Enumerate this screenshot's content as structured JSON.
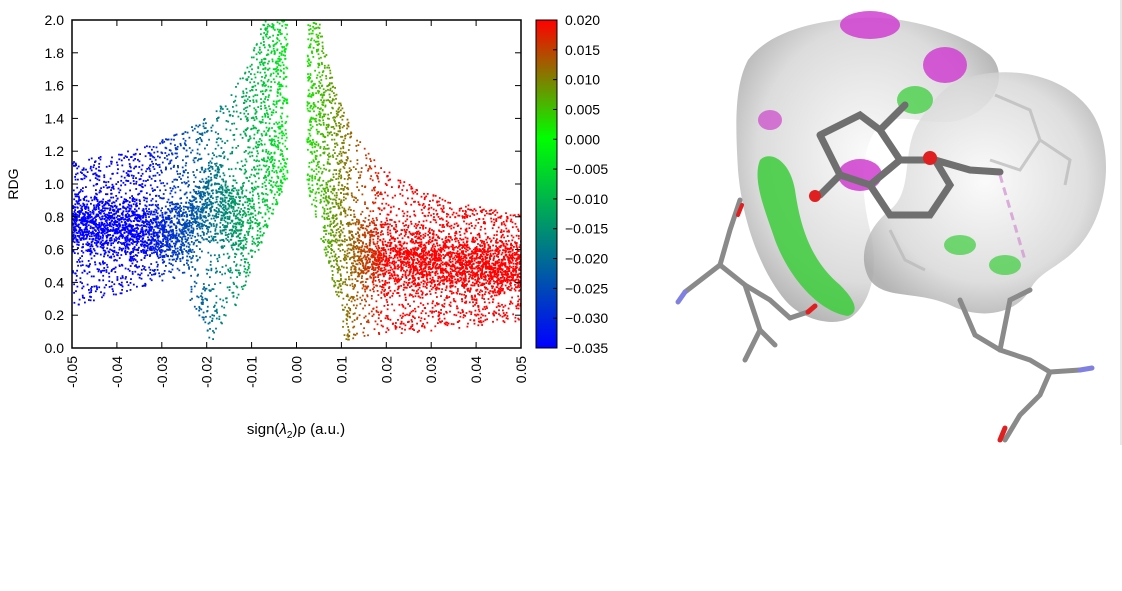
{
  "chart_data": {
    "type": "scatter",
    "title": "",
    "xlabel_parts": {
      "prefix": "sign(",
      "lambda": "λ",
      "sub": "2",
      "suffix": ")ρ (a.u.)"
    },
    "ylabel": "RDG",
    "xlim": [
      -0.05,
      0.05
    ],
    "ylim": [
      0.0,
      2.0
    ],
    "x_ticks": [
      "-0.05",
      "-0.04",
      "-0.03",
      "-0.02",
      "-0.01",
      "0.00",
      "0.01",
      "0.02",
      "0.03",
      "0.04",
      "0.05"
    ],
    "y_ticks": [
      "0.0",
      "0.2",
      "0.4",
      "0.6",
      "0.8",
      "1.0",
      "1.2",
      "1.4",
      "1.6",
      "1.8",
      "2.0"
    ],
    "colorbar": {
      "range": [
        -0.035,
        0.02
      ],
      "ticks": [
        "0.020",
        "0.015",
        "0.010",
        "0.005",
        "0.000",
        "−0.005",
        "−0.010",
        "−0.015",
        "−0.020",
        "−0.025",
        "−0.030",
        "−0.035"
      ],
      "colors": [
        "#0000ff",
        "#00ff00",
        "#ff0000"
      ]
    },
    "series": [
      {
        "description_points": "sample of scatter envelope (x = sign(λ2)ρ, y = RDG)",
        "points": [
          {
            "x": -0.049,
            "y": 1.08
          },
          {
            "x": -0.049,
            "y": 0.55
          },
          {
            "x": -0.049,
            "y": 0.25
          },
          {
            "x": -0.045,
            "y": 1.1
          },
          {
            "x": -0.045,
            "y": 0.6
          },
          {
            "x": -0.045,
            "y": 0.3
          },
          {
            "x": -0.04,
            "y": 1.12
          },
          {
            "x": -0.04,
            "y": 0.65
          },
          {
            "x": -0.04,
            "y": 0.4
          },
          {
            "x": -0.035,
            "y": 1.15
          },
          {
            "x": -0.035,
            "y": 0.7
          },
          {
            "x": -0.035,
            "y": 0.5
          },
          {
            "x": -0.03,
            "y": 1.22
          },
          {
            "x": -0.03,
            "y": 0.8
          },
          {
            "x": -0.03,
            "y": 0.6
          },
          {
            "x": -0.025,
            "y": 1.3
          },
          {
            "x": -0.025,
            "y": 0.6
          },
          {
            "x": -0.025,
            "y": 0.45
          },
          {
            "x": -0.02,
            "y": 1.4
          },
          {
            "x": -0.02,
            "y": 0.4
          },
          {
            "x": -0.02,
            "y": 0.0
          },
          {
            "x": -0.015,
            "y": 1.55
          },
          {
            "x": -0.015,
            "y": 0.5
          },
          {
            "x": -0.015,
            "y": 0.2
          },
          {
            "x": -0.01,
            "y": 1.75
          },
          {
            "x": -0.01,
            "y": 0.8
          },
          {
            "x": -0.01,
            "y": 0.4
          },
          {
            "x": -0.005,
            "y": 2.0
          },
          {
            "x": -0.005,
            "y": 1.3
          },
          {
            "x": -0.003,
            "y": 2.0
          },
          {
            "x": 0.002,
            "y": 2.0
          },
          {
            "x": 0.004,
            "y": 1.3
          },
          {
            "x": 0.006,
            "y": 0.5
          },
          {
            "x": 0.01,
            "y": 1.7
          },
          {
            "x": 0.01,
            "y": 0.2
          },
          {
            "x": 0.015,
            "y": 0.1
          },
          {
            "x": 0.015,
            "y": 1.3
          },
          {
            "x": 0.02,
            "y": 1.1
          },
          {
            "x": 0.02,
            "y": 0.2
          },
          {
            "x": 0.03,
            "y": 0.95
          },
          {
            "x": 0.03,
            "y": 0.3
          },
          {
            "x": 0.04,
            "y": 0.85
          },
          {
            "x": 0.04,
            "y": 0.3
          },
          {
            "x": 0.049,
            "y": 0.8
          },
          {
            "x": 0.049,
            "y": 0.1
          }
        ]
      }
    ],
    "grid": false,
    "legend": "colorbar-right"
  }
}
